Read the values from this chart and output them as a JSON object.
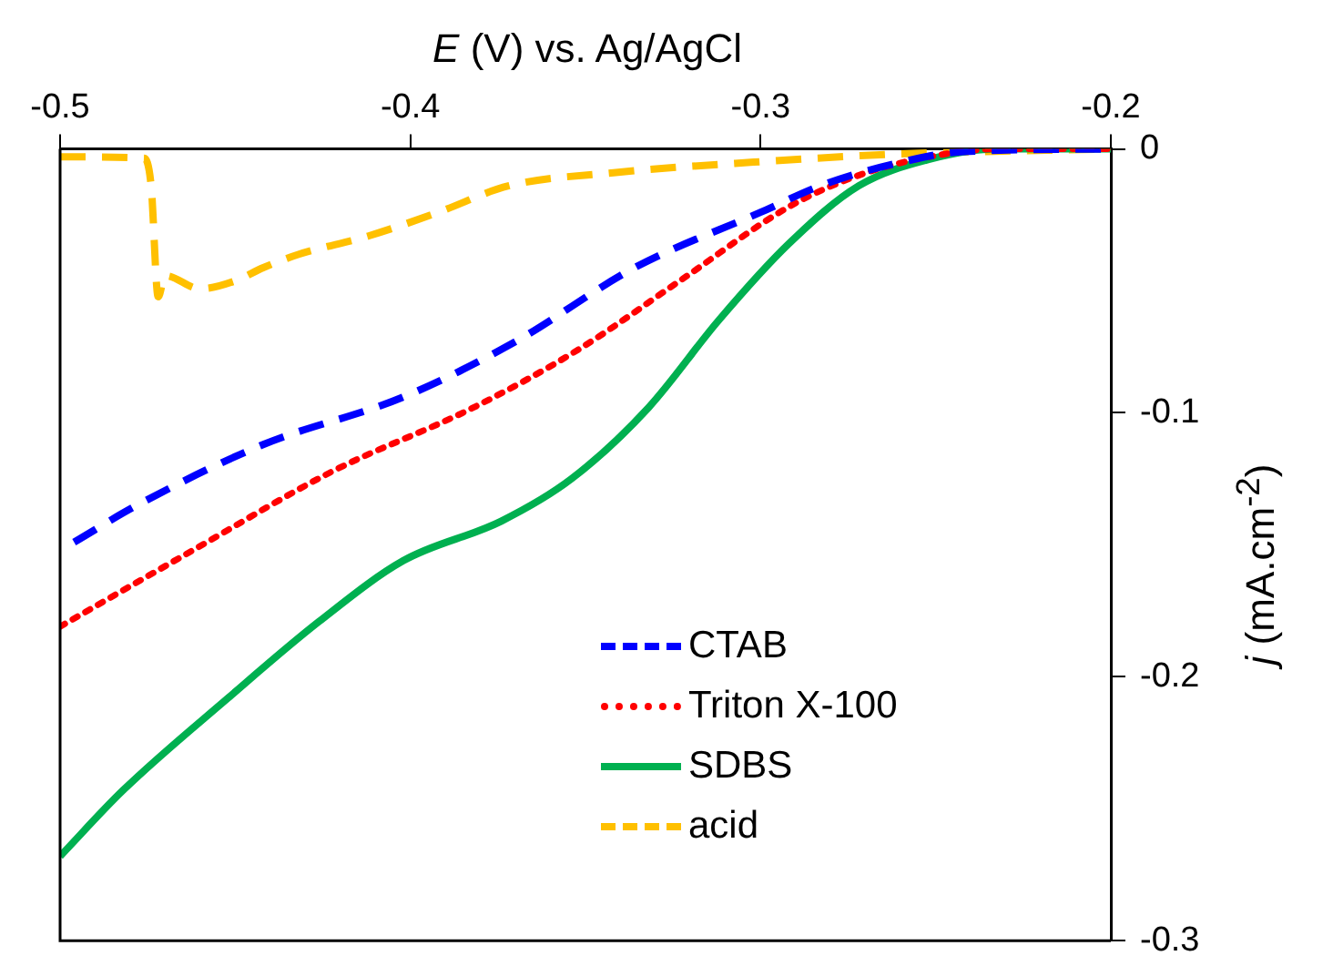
{
  "chart_data": {
    "type": "line",
    "xlabel": "E (V) vs. Ag/AgCl",
    "ylabel": "j (mA.cm$^{-2}$)",
    "xlim": [
      -0.5,
      -0.2
    ],
    "xticks": [
      -0.5,
      -0.4,
      -0.3,
      -0.2
    ],
    "ylim": [
      -0.3,
      0
    ],
    "yticks": [
      0,
      -0.1,
      -0.2,
      -0.3
    ],
    "grid": false,
    "legend": "bottom right",
    "marker": "none",
    "series": [
      {
        "name": "CTAB",
        "color": "#0000ff",
        "line_style": "dashed",
        "x": [
          -0.496,
          -0.478,
          -0.442,
          -0.402,
          -0.37,
          -0.336,
          -0.3,
          -0.282,
          -0.262,
          -0.242,
          -0.2
        ],
        "values": [
          -0.149,
          -0.135,
          -0.112,
          -0.094,
          -0.073,
          -0.045,
          -0.024,
          -0.0135,
          -0.0057,
          -0.001,
          0
        ]
      },
      {
        "name": "Triton X-100",
        "color": "#ff0000",
        "line_style": "dotted",
        "x": [
          -0.5,
          -0.462,
          -0.422,
          -0.382,
          -0.352,
          -0.322,
          -0.292,
          -0.272,
          -0.252,
          -0.232,
          -0.2
        ],
        "values": [
          -0.181,
          -0.152,
          -0.122,
          -0.098,
          -0.076,
          -0.049,
          -0.022,
          -0.01,
          -0.003,
          0,
          0
        ]
      },
      {
        "name": "SDBS",
        "color": "#00b050",
        "line_style": "solid",
        "x": [
          -0.5,
          -0.482,
          -0.452,
          -0.426,
          -0.402,
          -0.374,
          -0.354,
          -0.332,
          -0.312,
          -0.292,
          -0.272,
          -0.252,
          -0.232,
          -0.2
        ],
        "values": [
          -0.268,
          -0.243,
          -0.208,
          -0.179,
          -0.156,
          -0.141,
          -0.125,
          -0.098,
          -0.065,
          -0.036,
          -0.014,
          -0.004,
          0,
          0
        ]
      },
      {
        "name": "acid",
        "color": "#ffc000",
        "line_style": "dashed",
        "x": [
          -0.5,
          -0.476,
          -0.474,
          -0.472,
          -0.47,
          -0.46,
          -0.45,
          -0.442,
          -0.432,
          -0.412,
          -0.392,
          -0.372,
          -0.342,
          -0.302,
          -0.262,
          -0.2
        ],
        "values": [
          -0.003,
          -0.0035,
          -0.014,
          -0.056,
          -0.048,
          -0.053,
          -0.05,
          -0.045,
          -0.04,
          -0.033,
          -0.024,
          -0.014,
          -0.009,
          -0.005,
          -0.002,
          0
        ]
      }
    ]
  }
}
